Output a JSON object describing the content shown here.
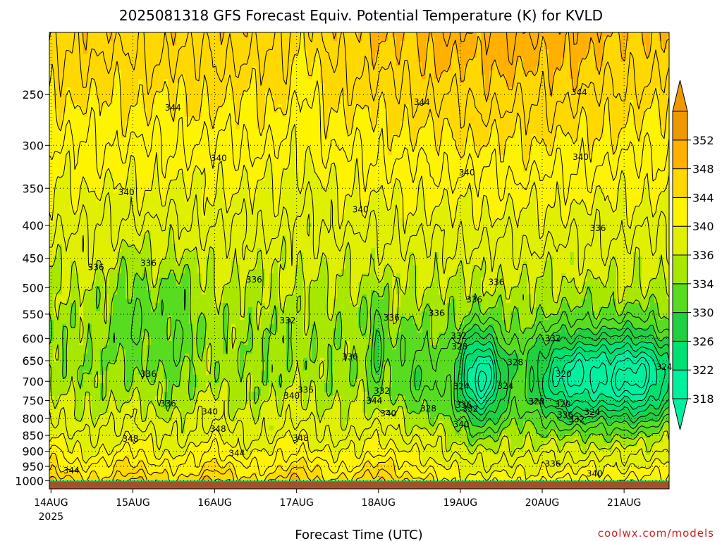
{
  "chart_data": {
    "type": "heatmap",
    "title": "2025081318 GFS Forecast Equiv. Potential Temperature (K) for KVLD",
    "xlabel": "Forecast Time (UTC)",
    "ylabel": "",
    "x_ticks": [
      {
        "label": "14AUG",
        "sub": "2025",
        "day": 0
      },
      {
        "label": "15AUG",
        "sub": "",
        "day": 1
      },
      {
        "label": "16AUG",
        "sub": "",
        "day": 2
      },
      {
        "label": "17AUG",
        "sub": "",
        "day": 3
      },
      {
        "label": "18AUG",
        "sub": "",
        "day": 4
      },
      {
        "label": "19AUG",
        "sub": "",
        "day": 5
      },
      {
        "label": "20AUG",
        "sub": "",
        "day": 6
      },
      {
        "label": "21AUG",
        "sub": "",
        "day": 7
      }
    ],
    "xlim": [
      -0.02,
      7.55
    ],
    "y_axis": "pressure (hPa), log-p, inverted",
    "ylim": [
      1030,
      200
    ],
    "y_ticks": [
      250,
      300,
      350,
      400,
      450,
      500,
      550,
      600,
      650,
      700,
      750,
      800,
      850,
      900,
      950,
      1000
    ],
    "grid": true,
    "colorbar": {
      "levels": [
        318,
        322,
        326,
        330,
        334,
        336,
        340,
        344,
        348,
        352
      ],
      "colors": [
        "#00f0a0",
        "#00e070",
        "#20d040",
        "#58dc20",
        "#a8e800",
        "#e0f000",
        "#fff400",
        "#ffd800",
        "#ffb000",
        "#f09800"
      ],
      "extend": "both"
    },
    "ground_color": "#a0522d",
    "contour_labels": [
      {
        "text": "344",
        "day": 1.49,
        "p": 262
      },
      {
        "text": "344",
        "day": 4.53,
        "p": 257
      },
      {
        "text": "344",
        "day": 6.45,
        "p": 248
      },
      {
        "text": "340",
        "day": 2.05,
        "p": 314
      },
      {
        "text": "340",
        "day": 5.08,
        "p": 331
      },
      {
        "text": "340",
        "day": 6.47,
        "p": 313
      },
      {
        "text": "340",
        "day": 0.92,
        "p": 355
      },
      {
        "text": "340",
        "day": 3.78,
        "p": 378
      },
      {
        "text": "336",
        "day": 6.68,
        "p": 404
      },
      {
        "text": "336",
        "day": 0.55,
        "p": 465
      },
      {
        "text": "336",
        "day": 1.19,
        "p": 458
      },
      {
        "text": "336",
        "day": 2.48,
        "p": 486
      },
      {
        "text": "336",
        "day": 5.44,
        "p": 490
      },
      {
        "text": "336",
        "day": 5.17,
        "p": 522
      },
      {
        "text": "336",
        "day": 4.16,
        "p": 557
      },
      {
        "text": "336",
        "day": 4.71,
        "p": 548
      },
      {
        "text": "336",
        "day": 3.65,
        "p": 641
      },
      {
        "text": "336",
        "day": 1.19,
        "p": 682
      },
      {
        "text": "336",
        "day": 1.43,
        "p": 758
      },
      {
        "text": "336",
        "day": 6.28,
        "p": 790
      },
      {
        "text": "336",
        "day": 6.13,
        "p": 942
      },
      {
        "text": "336",
        "day": 5.04,
        "p": 762
      },
      {
        "text": "332",
        "day": 2.89,
        "p": 563
      },
      {
        "text": "332",
        "day": 4.98,
        "p": 595
      },
      {
        "text": "332",
        "day": 6.13,
        "p": 600
      },
      {
        "text": "332",
        "day": 4.04,
        "p": 725
      },
      {
        "text": "332",
        "day": 5.12,
        "p": 773
      },
      {
        "text": "332",
        "day": 6.42,
        "p": 803
      },
      {
        "text": "328",
        "day": 4.99,
        "p": 618
      },
      {
        "text": "328",
        "day": 5.67,
        "p": 654
      },
      {
        "text": "328",
        "day": 5.93,
        "p": 753
      },
      {
        "text": "328",
        "day": 4.61,
        "p": 772
      },
      {
        "text": "324",
        "day": 5.01,
        "p": 713
      },
      {
        "text": "324",
        "day": 5.55,
        "p": 712
      },
      {
        "text": "324",
        "day": 7.49,
        "p": 665
      },
      {
        "text": "324",
        "day": 6.61,
        "p": 782
      },
      {
        "text": "320",
        "day": 6.26,
        "p": 682
      },
      {
        "text": "320",
        "day": 6.25,
        "p": 760
      },
      {
        "text": "340",
        "day": 1.94,
        "p": 781
      },
      {
        "text": "340",
        "day": 2.94,
        "p": 738
      },
      {
        "text": "340",
        "day": 4.12,
        "p": 786
      },
      {
        "text": "340",
        "day": 5.01,
        "p": 817
      },
      {
        "text": "340",
        "day": 6.64,
        "p": 975
      },
      {
        "text": "336",
        "day": 3.11,
        "p": 722
      },
      {
        "text": "344",
        "day": 3.95,
        "p": 751
      },
      {
        "text": "344",
        "day": 0.25,
        "p": 964
      },
      {
        "text": "344",
        "day": 2.27,
        "p": 907
      },
      {
        "text": "348",
        "day": 0.97,
        "p": 861
      },
      {
        "text": "348",
        "day": 2.04,
        "p": 831
      },
      {
        "text": "348",
        "day": 3.05,
        "p": 858
      }
    ]
  },
  "credit": "coolwx.com/models"
}
